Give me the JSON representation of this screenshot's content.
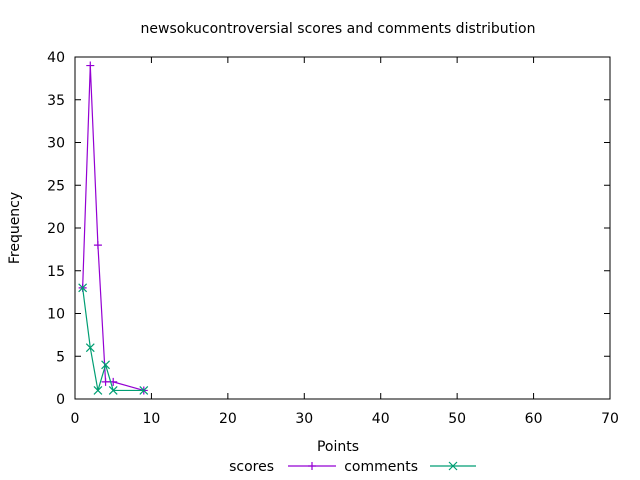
{
  "chart_data": {
    "type": "line",
    "title": "newsokucontroversial scores and comments distribution",
    "xlabel": "Points",
    "ylabel": "Frequency",
    "xlim": [
      0,
      70
    ],
    "ylim": [
      0,
      40
    ],
    "x_ticks": [
      "0",
      "10",
      "20",
      "30",
      "40",
      "50",
      "60",
      "70"
    ],
    "y_ticks": [
      "0",
      "5",
      "10",
      "15",
      "20",
      "25",
      "30",
      "35",
      "40"
    ],
    "grid": false,
    "legend_position": "bottom-center",
    "series": [
      {
        "name": "scores",
        "color": "#9400d3",
        "marker": "plus",
        "points": [
          [
            1,
            13
          ],
          [
            2,
            39
          ],
          [
            3,
            18
          ],
          [
            4,
            2
          ],
          [
            5,
            2
          ],
          [
            9,
            1
          ]
        ]
      },
      {
        "name": "comments",
        "color": "#009e73",
        "marker": "x",
        "points": [
          [
            1,
            13
          ],
          [
            2,
            6
          ],
          [
            3,
            1
          ],
          [
            4,
            4
          ],
          [
            5,
            1
          ],
          [
            9,
            1
          ]
        ]
      }
    ]
  }
}
